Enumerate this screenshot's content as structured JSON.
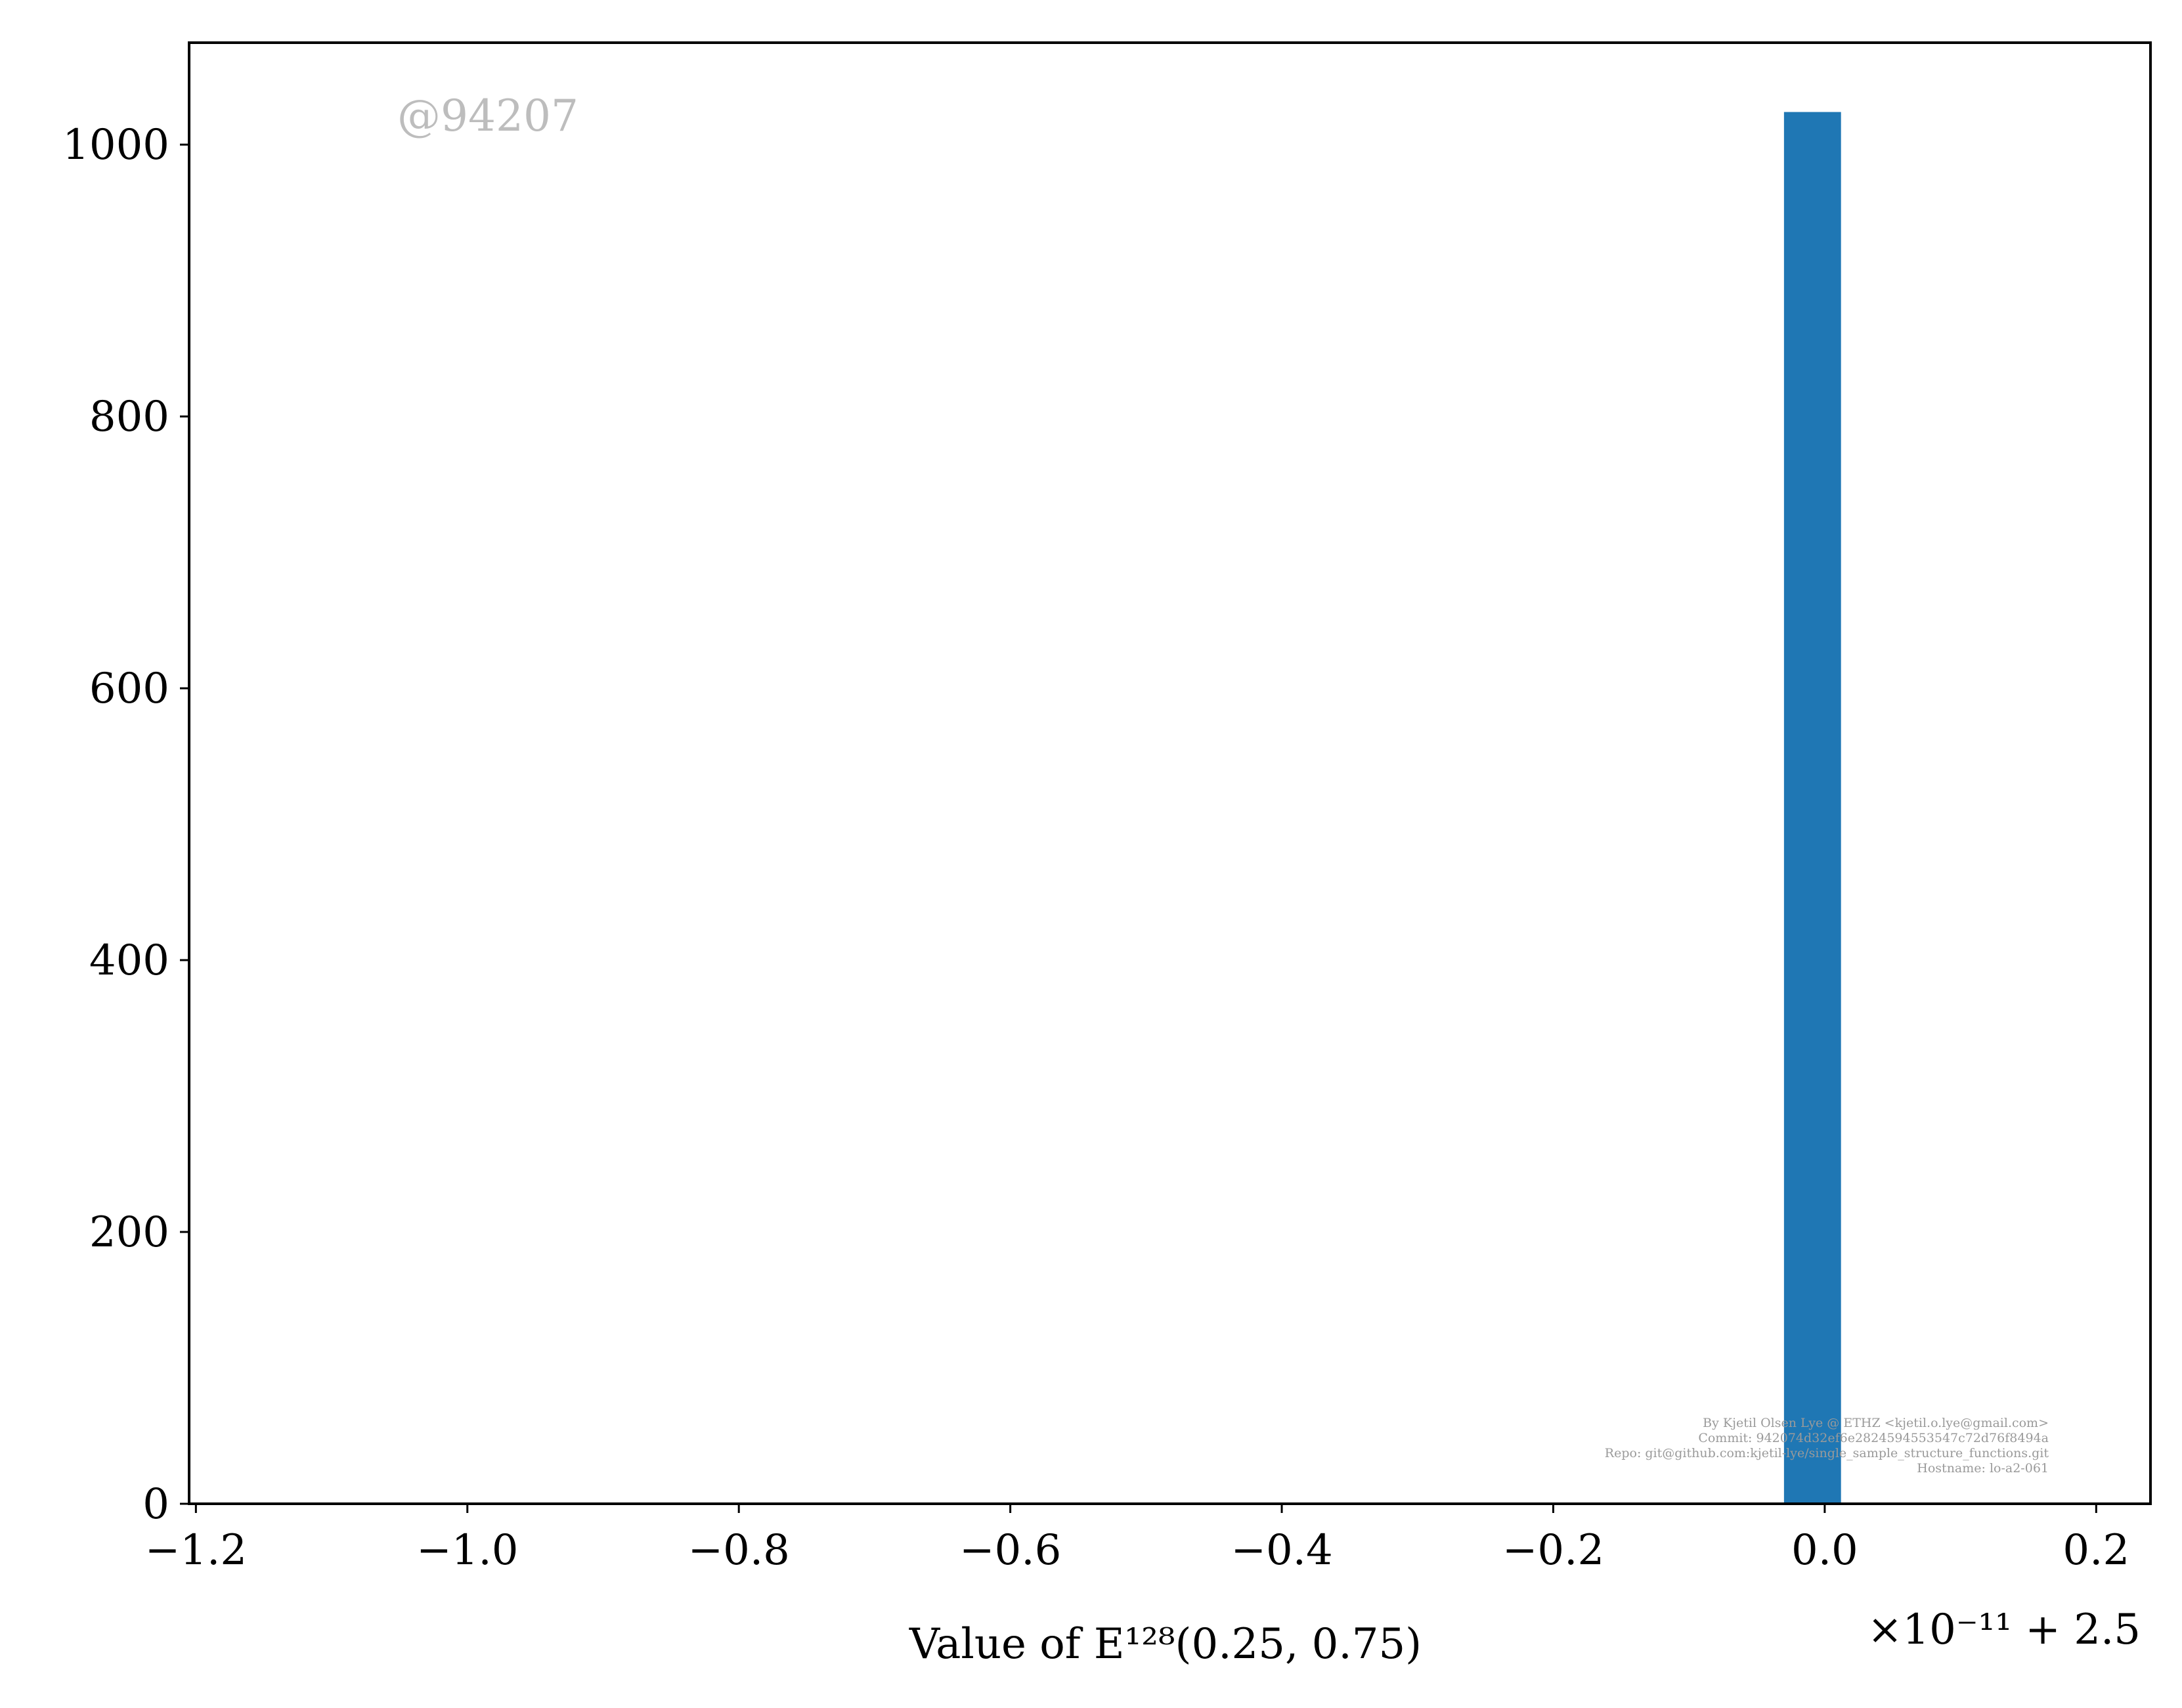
{
  "chart_data": {
    "type": "bar",
    "title": "",
    "xlabel": "Value of E¹²⁸(0.25, 0.75)",
    "ylabel": "",
    "x_offset_label": "×10⁻¹¹ + 2.5",
    "xlim": [
      -1.205,
      0.24
    ],
    "ylim": [
      0,
      1075
    ],
    "xticks": [
      -1.2,
      -1.0,
      -0.8,
      -0.6,
      -0.4,
      -0.2,
      0.0,
      0.2
    ],
    "xtick_labels": [
      "−1.2",
      "−1.0",
      "−0.8",
      "−0.6",
      "−0.4",
      "−0.2",
      "0.0",
      "0.2"
    ],
    "yticks": [
      0,
      200,
      400,
      600,
      800,
      1000
    ],
    "ytick_labels": [
      "0",
      "200",
      "400",
      "600",
      "800",
      "1000"
    ],
    "grid": false,
    "legend": null,
    "bar_color": "#1f77b4",
    "bars": [
      {
        "x_left": -0.03,
        "x_right": 0.012,
        "count": 1024
      }
    ]
  },
  "annotations": {
    "watermark": "@94207",
    "credit_lines": [
      "By Kjetil Olsen Lye @ ETHZ <kjetil.o.lye@gmail.com>",
      "Commit: 942074d32ef6e2824594553547c72d76f8494a",
      "Repo: git@github.com:kjetil-lye/single_sample_structure_functions.git",
      "Hostname: lo-a2-061"
    ]
  }
}
